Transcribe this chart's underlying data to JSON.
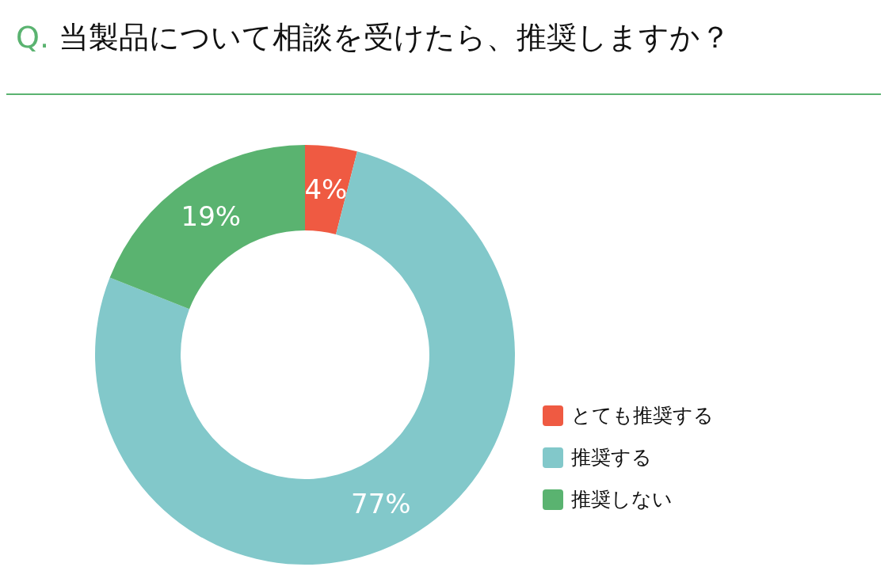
{
  "chart_data": {
    "type": "donut",
    "title": "Q. 当製品について相談を受けたら、推奨しますか？",
    "categories": [
      "とても推奨する",
      "推奨する",
      "推奨しない"
    ],
    "values": [
      4,
      77,
      19
    ],
    "value_labels": [
      "4%",
      "77%",
      "19%"
    ],
    "colors": [
      "#ef5a42",
      "#82c8ca",
      "#5ab370"
    ],
    "legend": "right"
  }
}
